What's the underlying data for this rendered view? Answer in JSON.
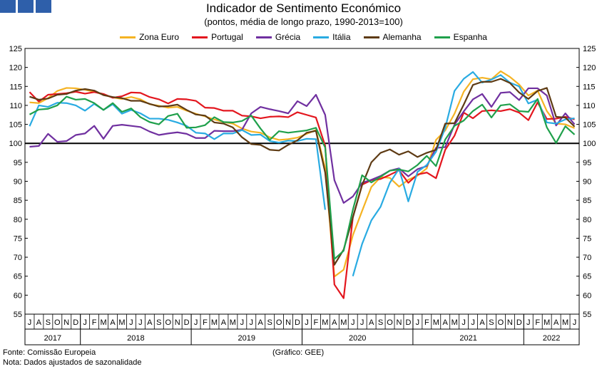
{
  "header": {
    "title": "Indicador de Sentimento Económico",
    "subtitle": "(pontos, média de longo prazo, 1990-2013=100)"
  },
  "logo": {
    "color": "#2e5faa"
  },
  "footer": {
    "source": "Fonte: Comissão Europeia",
    "note": "Nota: Dados ajustados de sazonalidade",
    "credit": "(Gráfico: GEE)"
  },
  "chart_data": {
    "type": "line",
    "title": "Indicador de Sentimento Económico",
    "subtitle": "(pontos, média de longo prazo, 1990-2013=100)",
    "ylim": [
      55,
      125
    ],
    "yticks": [
      55,
      60,
      65,
      70,
      75,
      80,
      85,
      90,
      95,
      100,
      105,
      110,
      115,
      120,
      125
    ],
    "reference_line": 100,
    "grid": false,
    "legend_position": "top",
    "months": [
      "J",
      "A",
      "S",
      "O",
      "N",
      "D",
      "J",
      "F",
      "M",
      "A",
      "M",
      "J",
      "J",
      "A",
      "S",
      "O",
      "N",
      "D",
      "J",
      "F",
      "M",
      "A",
      "M",
      "J",
      "J",
      "A",
      "S",
      "O",
      "N",
      "D",
      "J",
      "F",
      "M",
      "A",
      "M",
      "J",
      "J",
      "A",
      "S",
      "O",
      "N",
      "D",
      "J",
      "F",
      "M",
      "A",
      "M",
      "J",
      "J",
      "A",
      "S",
      "O",
      "N",
      "D",
      "J",
      "F",
      "M",
      "A",
      "M",
      "J"
    ],
    "years": [
      {
        "label": "2017",
        "start": 0,
        "end": 5
      },
      {
        "label": "2018",
        "start": 6,
        "end": 17
      },
      {
        "label": "2019",
        "start": 18,
        "end": 29
      },
      {
        "label": "2020",
        "start": 30,
        "end": 41
      },
      {
        "label": "2021",
        "start": 42,
        "end": 53
      },
      {
        "label": "2022",
        "start": 54,
        "end": 59
      }
    ],
    "series": [
      {
        "name": "Zona Euro",
        "color": "#f5b323",
        "values": [
          110.8,
          110.6,
          111.9,
          113.8,
          114.6,
          114.5,
          114.1,
          113.6,
          112.8,
          112.1,
          111.7,
          112.2,
          111.6,
          110.3,
          109.9,
          109.4,
          109.6,
          108.6,
          107.8,
          107.1,
          106.3,
          105.6,
          105.2,
          103.9,
          103.1,
          102.8,
          101.6,
          100.9,
          101.1,
          101.5,
          102.5,
          103.5,
          93.5,
          64.9,
          66.7,
          75.8,
          82.2,
          88.5,
          91.1,
          90.9,
          88.6,
          90.4,
          91.5,
          93.4,
          100.9,
          103.4,
          107.8,
          113.6,
          116.9,
          117.3,
          116.9,
          119.0,
          117.5,
          115.5,
          112.6,
          113.9,
          108.5,
          105.2,
          105.0,
          104.0
        ]
      },
      {
        "name": "Portugal",
        "color": "#e3161e",
        "values": [
          113.5,
          111.0,
          112.8,
          113.0,
          113.2,
          113.6,
          113.1,
          113.5,
          113.0,
          112.0,
          112.4,
          113.4,
          113.3,
          112.2,
          111.6,
          110.5,
          111.7,
          111.6,
          111.2,
          109.4,
          109.3,
          108.6,
          108.6,
          107.3,
          107.1,
          106.6,
          107.0,
          107.1,
          106.9,
          108.2,
          107.5,
          106.8,
          99.4,
          62.8,
          59.2,
          80.5,
          89.1,
          90.3,
          90.6,
          91.7,
          92.9,
          89.6,
          91.8,
          92.3,
          90.8,
          98.3,
          102.0,
          108.1,
          106.6,
          108.5,
          108.7,
          108.5,
          109.0,
          108.1,
          106.1,
          110.8,
          106.4,
          106.5,
          107.0,
          106.3
        ]
      },
      {
        "name": "Grécia",
        "color": "#7030a0",
        "values": [
          99.1,
          99.3,
          102.5,
          100.4,
          100.6,
          102.2,
          102.6,
          104.6,
          101.2,
          104.6,
          104.9,
          104.6,
          104.3,
          103.1,
          102.2,
          102.6,
          102.9,
          102.5,
          101.4,
          101.4,
          103.3,
          103.2,
          103.2,
          103.6,
          107.9,
          109.6,
          109.0,
          108.5,
          107.9,
          111.1,
          109.8,
          112.8,
          107.5,
          90.3,
          84.3,
          86.0,
          89.6,
          90.4,
          91.4,
          92.8,
          93.4,
          91.3,
          93.2,
          94.0,
          98.8,
          99.0,
          104.9,
          108.4,
          111.6,
          113.0,
          109.6,
          113.3,
          113.5,
          111.4,
          114.5,
          114.5,
          112.6,
          104.7,
          107.9,
          105.0
        ]
      },
      {
        "name": "Itália",
        "color": "#29abe2",
        "values": [
          104.5,
          110.0,
          109.6,
          110.7,
          110.6,
          110.0,
          108.6,
          110.4,
          108.8,
          110.3,
          107.8,
          108.8,
          107.9,
          106.5,
          106.5,
          106.2,
          105.5,
          104.6,
          102.8,
          102.6,
          101.1,
          102.6,
          102.6,
          103.5,
          102.2,
          102.3,
          100.6,
          100.2,
          100.7,
          100.6,
          101.2,
          101.1,
          82.5,
          null,
          null,
          65.0,
          73.5,
          79.7,
          83.3,
          89.6,
          93.3,
          84.7,
          92.5,
          94.3,
          97.8,
          104.1,
          113.8,
          117.0,
          118.8,
          116.0,
          116.8,
          118.0,
          116.0,
          115.0,
          110.5,
          111.5,
          105.5,
          105.2,
          106.3,
          106.6
        ]
      },
      {
        "name": "Alemanha",
        "color": "#5e3b14",
        "values": [
          112.3,
          111.5,
          111.8,
          112.8,
          113.0,
          113.9,
          114.3,
          113.9,
          112.7,
          112.2,
          111.9,
          111.2,
          111.2,
          110.4,
          109.7,
          109.8,
          110.2,
          108.8,
          107.6,
          107.3,
          105.5,
          105.2,
          104.2,
          101.6,
          99.8,
          99.6,
          98.3,
          98.1,
          99.6,
          100.8,
          102.8,
          103.3,
          92.3,
          68.0,
          72.0,
          80.5,
          89.0,
          95.0,
          97.5,
          98.4,
          97.0,
          97.9,
          96.4,
          97.5,
          98.3,
          105.2,
          105.3,
          110.2,
          115.4,
          116.2,
          116.2,
          117.0,
          115.9,
          113.4,
          111.7,
          113.8,
          114.6,
          107.0,
          106.8,
          104.4
        ]
      },
      {
        "name": "Espanha",
        "color": "#1fa04b",
        "values": [
          107.6,
          108.9,
          109.1,
          110.0,
          112.3,
          111.5,
          111.7,
          110.6,
          108.8,
          110.6,
          108.3,
          109.2,
          106.9,
          105.6,
          105.0,
          107.2,
          107.8,
          104.1,
          104.2,
          104.8,
          106.9,
          105.6,
          105.5,
          105.9,
          107.3,
          103.9,
          100.9,
          103.2,
          102.8,
          103.1,
          103.4,
          104.1,
          98.9,
          69.5,
          71.7,
          82.5,
          91.6,
          89.7,
          91.2,
          92.8,
          93.1,
          92.6,
          94.3,
          96.7,
          94.0,
          101.0,
          104.6,
          106.0,
          108.5,
          110.2,
          106.8,
          110.0,
          110.3,
          108.5,
          108.3,
          111.7,
          104.2,
          100.1,
          104.5,
          102.3
        ]
      }
    ]
  }
}
